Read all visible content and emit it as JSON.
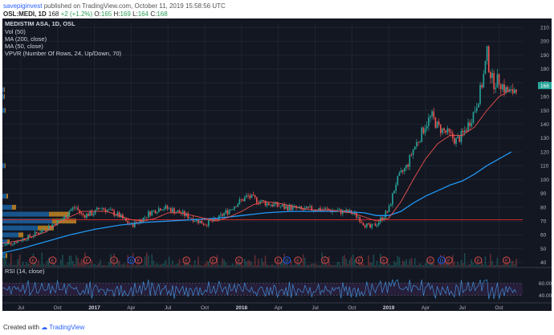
{
  "header": {
    "username": "savepiginvest",
    "published": "published on TradingView.com, October 11, 2019 15:58:56 UTC"
  },
  "ticker_line": {
    "symbol": "OSL:MEDI, 1D",
    "last": "168",
    "change": "+2 (+1.2%)",
    "o_label": "O:",
    "o": "165",
    "h_label": "H:",
    "h": "169",
    "l_label": "L:",
    "l": "164",
    "c_label": "C:",
    "c": "168"
  },
  "legend": {
    "title": "MEDISTIM ASA, 1D, OSL",
    "lines": [
      "Vol (50)",
      "MA (200, close)",
      "MA (50, close)",
      "VPVR (Number Of Rows, 24, Up/Down, 70)"
    ]
  },
  "rsi_label": "RSI (14, close)",
  "footer": {
    "created_with": "Created with",
    "brand": "TradingView"
  },
  "colors": {
    "background": "#131722",
    "candle_up": "#26a69a",
    "candle_down": "#ef5350",
    "ma200": "#2196f3",
    "ma50": "#ef5350",
    "rsi": "#3f8fd6",
    "rsi_band": "#2a1f3d",
    "price_tag": "#26a69a",
    "vpvr_up": "#1e88e5",
    "vpvr_down": "#f9a825"
  },
  "chart_data": {
    "type": "line",
    "title": "MEDISTIM ASA, 1D, OSL",
    "y_axis_labels": [
      "210",
      "200",
      "190",
      "180",
      "170",
      "160",
      "150",
      "140",
      "130",
      "120",
      "110",
      "100",
      "90",
      "80",
      "70",
      "60",
      "50",
      "40"
    ],
    "ylim": [
      37,
      213
    ],
    "x_axis_labels": [
      "Jul",
      "Oct",
      "2017",
      "Apr",
      "Jul",
      "Oct",
      "2018",
      "Apr",
      "Jul",
      "Oct",
      "2019",
      "Apr",
      "Jul",
      "Oct"
    ],
    "x_axis_months": [
      6,
      9,
      12,
      15,
      18,
      21,
      24,
      27,
      30,
      33,
      36,
      39,
      42,
      45
    ],
    "xlim": [
      4.5,
      46.4
    ],
    "last_price": "168",
    "horizontal_line": 71,
    "series": [
      {
        "name": "MEDISTIM ASA",
        "points": [
          [
            4.5,
            52
          ],
          [
            5.5,
            55
          ],
          [
            6.5,
            58
          ],
          [
            7.5,
            62
          ],
          [
            8.5,
            67
          ],
          [
            9.5,
            72
          ],
          [
            10,
            78
          ],
          [
            10.5,
            80
          ],
          [
            11,
            74
          ],
          [
            12,
            76
          ],
          [
            12.5,
            80
          ],
          [
            13,
            78
          ],
          [
            14,
            74
          ],
          [
            14.5,
            70
          ],
          [
            15,
            67
          ],
          [
            15.5,
            69
          ],
          [
            16,
            72
          ],
          [
            16.5,
            76
          ],
          [
            17,
            78
          ],
          [
            17.5,
            80
          ],
          [
            18,
            79
          ],
          [
            19,
            76
          ],
          [
            20,
            72
          ],
          [
            20.5,
            70
          ],
          [
            21,
            68
          ],
          [
            22,
            71
          ],
          [
            22.5,
            75
          ],
          [
            23,
            78
          ],
          [
            23.5,
            82
          ],
          [
            24,
            85
          ],
          [
            24.5,
            88
          ],
          [
            25,
            86
          ],
          [
            26,
            83
          ],
          [
            27,
            81
          ],
          [
            27.5,
            80
          ],
          [
            28,
            80
          ],
          [
            29,
            78
          ],
          [
            30,
            79
          ],
          [
            31,
            78
          ],
          [
            32,
            77
          ],
          [
            33,
            76
          ],
          [
            33.5,
            73
          ],
          [
            34,
            68
          ],
          [
            34.5,
            65
          ],
          [
            35,
            68
          ],
          [
            35.5,
            73
          ],
          [
            36,
            78
          ],
          [
            36.3,
            88
          ],
          [
            36.6,
            98
          ],
          [
            37,
            104
          ],
          [
            37.5,
            110
          ],
          [
            38,
            122
          ],
          [
            38.5,
            130
          ],
          [
            39,
            140
          ],
          [
            39.5,
            146
          ],
          [
            40,
            138
          ],
          [
            40.5,
            135
          ],
          [
            41,
            132
          ],
          [
            41.5,
            128
          ],
          [
            42,
            132
          ],
          [
            42.5,
            140
          ],
          [
            43,
            150
          ],
          [
            43.5,
            165
          ],
          [
            43.8,
            178
          ],
          [
            44,
            192
          ],
          [
            44.2,
            180
          ],
          [
            44.5,
            170
          ],
          [
            45,
            172
          ],
          [
            45.5,
            165
          ],
          [
            46,
            162
          ],
          [
            46.4,
            168
          ]
        ]
      },
      {
        "name": "MA (200, close)",
        "points": [
          [
            4.5,
            47
          ],
          [
            6,
            50
          ],
          [
            8,
            55
          ],
          [
            10,
            60
          ],
          [
            12,
            64
          ],
          [
            14,
            67
          ],
          [
            16,
            69
          ],
          [
            18,
            70
          ],
          [
            20,
            71
          ],
          [
            22,
            72
          ],
          [
            24,
            74
          ],
          [
            26,
            76
          ],
          [
            28,
            77
          ],
          [
            30,
            77
          ],
          [
            32,
            77
          ],
          [
            34,
            76
          ],
          [
            35,
            74
          ],
          [
            36,
            74
          ],
          [
            37,
            77
          ],
          [
            38,
            83
          ],
          [
            39,
            88
          ],
          [
            40,
            92
          ],
          [
            41,
            96
          ],
          [
            42,
            99
          ],
          [
            43,
            104
          ],
          [
            44,
            110
          ],
          [
            45,
            115
          ],
          [
            46,
            120
          ]
        ]
      },
      {
        "name": "MA (50, close)",
        "points": [
          [
            4.5,
            54
          ],
          [
            6,
            56
          ],
          [
            8,
            62
          ],
          [
            9,
            68
          ],
          [
            10,
            73
          ],
          [
            11,
            77
          ],
          [
            12,
            77
          ],
          [
            13,
            77
          ],
          [
            14,
            74
          ],
          [
            15,
            71
          ],
          [
            16,
            70
          ],
          [
            17,
            72
          ],
          [
            18,
            76
          ],
          [
            19,
            76
          ],
          [
            20,
            74
          ],
          [
            21,
            72
          ],
          [
            22,
            70
          ],
          [
            23,
            73
          ],
          [
            24,
            77
          ],
          [
            25,
            82
          ],
          [
            26,
            84
          ],
          [
            27,
            83
          ],
          [
            28,
            81
          ],
          [
            29,
            79
          ],
          [
            30,
            78
          ],
          [
            31,
            78
          ],
          [
            32,
            77
          ],
          [
            33,
            76
          ],
          [
            34,
            73
          ],
          [
            35,
            70
          ],
          [
            36,
            72
          ],
          [
            37,
            84
          ],
          [
            38,
            100
          ],
          [
            39,
            115
          ],
          [
            40,
            126
          ],
          [
            41,
            132
          ],
          [
            42,
            132
          ],
          [
            43,
            138
          ],
          [
            44,
            150
          ],
          [
            45,
            160
          ],
          [
            46,
            165
          ]
        ]
      }
    ]
  }
}
